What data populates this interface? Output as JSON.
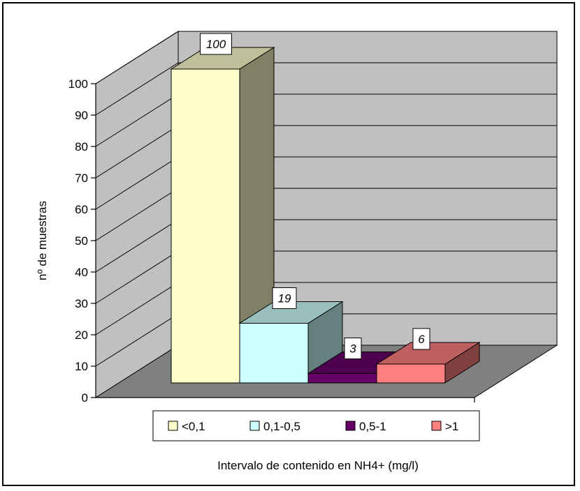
{
  "chart_data": {
    "type": "bar",
    "style": "3d-column",
    "categories": [
      "<0,1",
      "0,1-0,5",
      "0,5-1",
      ">1"
    ],
    "values": [
      100,
      19,
      3,
      6
    ],
    "data_labels": [
      "100",
      "19",
      "3",
      "6"
    ],
    "title": "",
    "xlabel": "Intervalo de contenido en NH4+ (mg/l)",
    "ylabel": "nº de muestras",
    "ylim": [
      0,
      100
    ],
    "yticks": [
      "0",
      "10",
      "20",
      "30",
      "40",
      "50",
      "60",
      "70",
      "80",
      "90",
      "100"
    ],
    "grid": true,
    "legend": {
      "placement": "bottom",
      "entries": [
        "<0,1",
        "0,1-0,5",
        "0,5-1",
        ">1"
      ]
    },
    "colors": {
      "bars": [
        "#ffffcc",
        "#ccffff",
        "#660066",
        "#ff8080"
      ],
      "wall": "#c0c0c0",
      "floor": "#808080"
    }
  }
}
